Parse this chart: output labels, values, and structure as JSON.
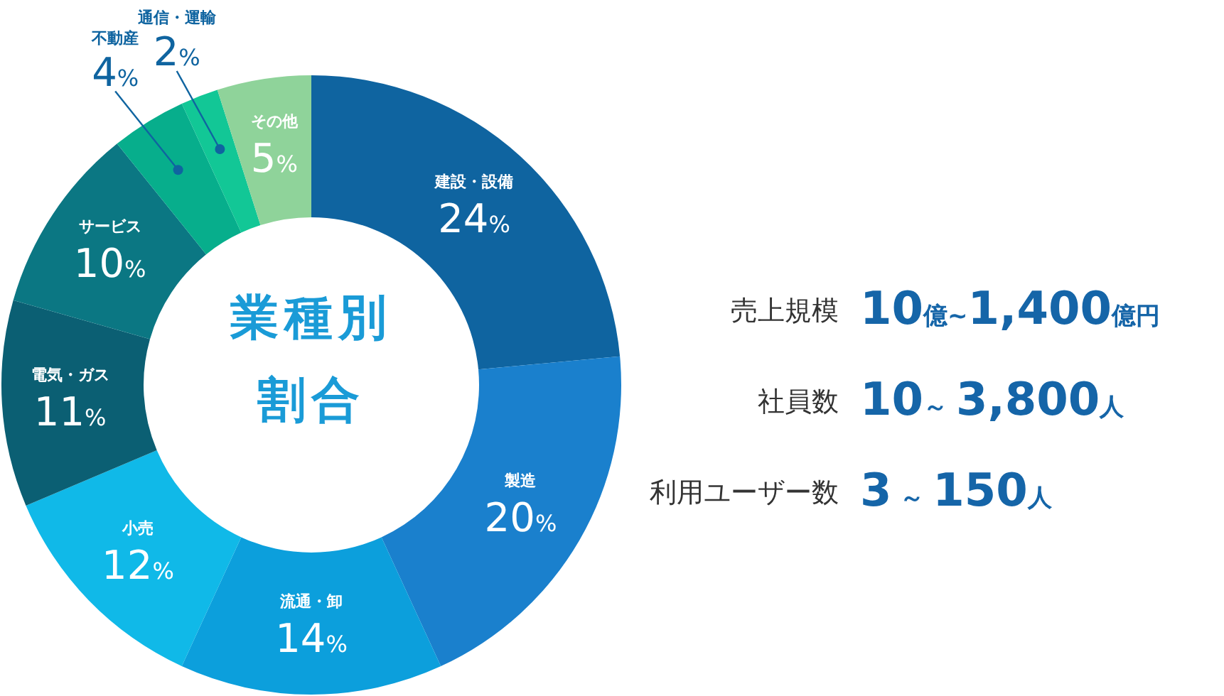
{
  "chart_data": {
    "type": "donut",
    "categories": [
      "建設・設備",
      "製造",
      "流通・卸",
      "小売",
      "電気・ガス",
      "サービス",
      "不動産",
      "通信・運輸",
      "その他"
    ],
    "values": [
      24,
      20,
      14,
      12,
      11,
      10,
      4,
      2,
      5
    ],
    "value_labels": [
      "24%",
      "20%",
      "14%",
      "12%",
      "11%",
      "10%",
      "4%",
      "2%",
      "5%"
    ],
    "colors": [
      "#0f64a0",
      "#1a80cd",
      "#0c9fdc",
      "#10b9e8",
      "#0b5f73",
      "#0b7783",
      "#07ae8c",
      "#12c796",
      "#8fd39a"
    ],
    "annotations": [
      "業種別",
      "割合",
      "売上規模",
      "10億~1,400億円",
      "社員数",
      "10～ 3,800人",
      "利用ユーザー数",
      "3 ～ 150人"
    ]
  }
}
